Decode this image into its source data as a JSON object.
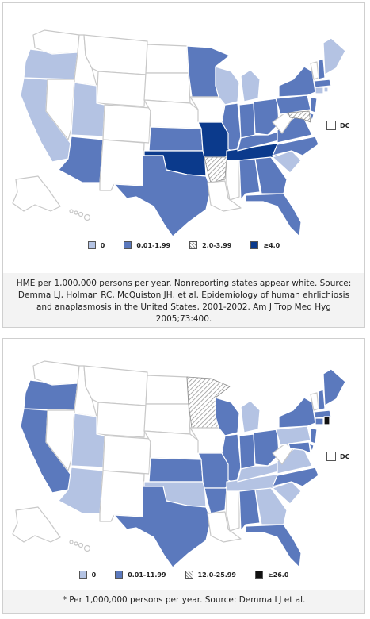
{
  "panels": [
    {
      "legend": [
        {
          "label": "0",
          "color": "#b4c3e3",
          "pattern": "solid"
        },
        {
          "label": "0.01-1.99",
          "color": "#5b79bd",
          "pattern": "solid"
        },
        {
          "label": "2.0-3.99",
          "color": "#ffffff",
          "pattern": "hatch"
        },
        {
          "label": "≥4.0",
          "color": "#0b3a8c",
          "pattern": "solid"
        }
      ],
      "dc_label": "DC",
      "caption": "HME per 1,000,000 persons per year. Nonreporting states appear white. Source: Demma LJ, Holman RC, McQuiston JH, et al. Epidemiology of human ehrlichiosis and anaplasmosis in the United States, 2001-2002. Am J Trop Med Hyg 2005;73:400."
    },
    {
      "legend": [
        {
          "label": "0",
          "color": "#b4c3e3",
          "pattern": "solid"
        },
        {
          "label": "0.01-11.99",
          "color": "#5b79bd",
          "pattern": "solid"
        },
        {
          "label": "12.0-25.99",
          "color": "#ffffff",
          "pattern": "hatch"
        },
        {
          "label": "≥26.0",
          "color": "#111111",
          "pattern": "solid"
        }
      ],
      "dc_label": "DC",
      "caption": "* Per 1,000,000 persons per year. Source: Demma LJ et al."
    }
  ],
  "colors": {
    "zero": "#b4c3e3",
    "low": "#5b79bd",
    "high": "#0b3a8c",
    "top": "#111111",
    "nonreporting": "#ffffff",
    "border": "#cfcfcf"
  }
}
